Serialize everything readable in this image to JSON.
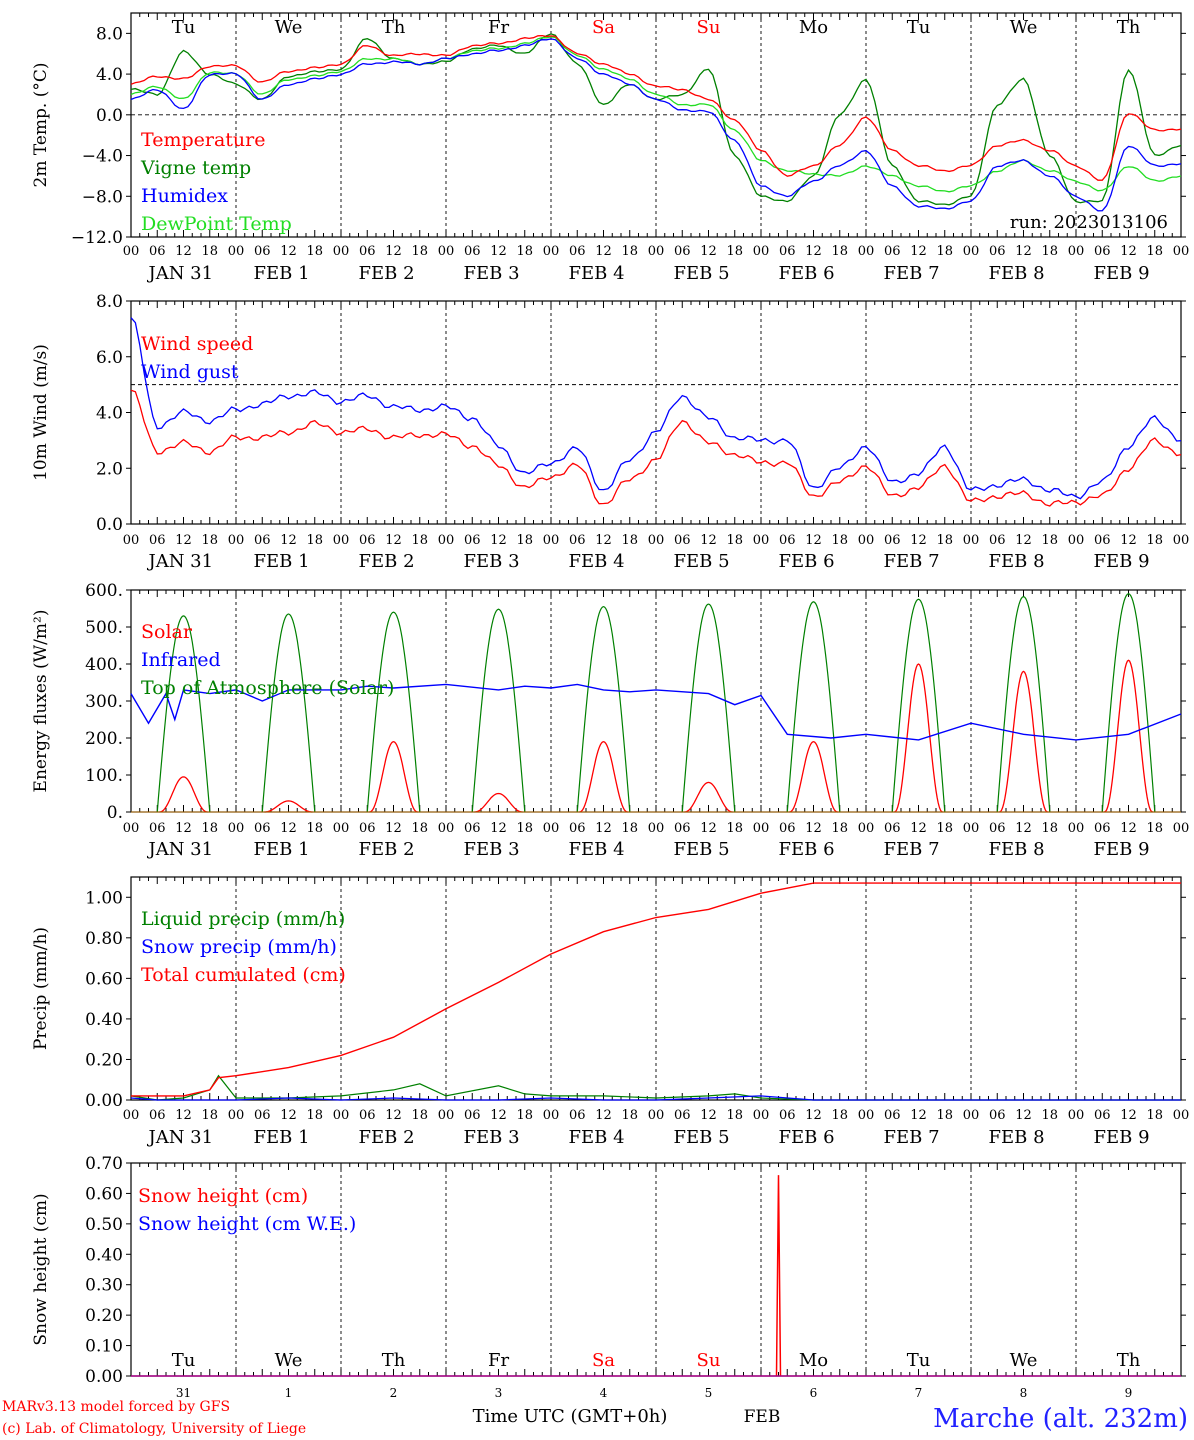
{
  "chart_data": [
    {
      "type": "line",
      "ylabel": "2m Temp. (°C)",
      "ylim": [
        -12,
        10
      ],
      "yticks": [
        8,
        4,
        0,
        -4,
        -8,
        -12
      ],
      "ytick_labels": [
        "8.0",
        "4.0",
        "0.0",
        "−4.0",
        "−8.0",
        "−12.0"
      ],
      "ref_line": 0,
      "day_labels": [
        "Tu",
        "We",
        "Th",
        "Fr",
        "Sa",
        "Su",
        "Mo",
        "Tu",
        "We",
        "Th"
      ],
      "run_label": "run: 2023013106",
      "x": [
        0,
        6,
        12,
        18,
        24,
        30,
        36,
        42,
        48,
        54,
        60,
        66,
        72,
        78,
        84,
        90,
        96,
        102,
        108,
        114,
        120,
        126,
        132,
        138,
        144,
        150,
        156,
        162,
        168,
        174,
        180,
        186,
        192,
        198,
        204,
        210,
        216,
        222,
        228,
        234,
        240
      ],
      "series": [
        {
          "name": "Temperature",
          "color": "#ff0000",
          "values": [
            3.0,
            3.8,
            3.5,
            4.8,
            4.8,
            3.2,
            4.3,
            4.6,
            5.0,
            6.8,
            5.8,
            6.0,
            5.8,
            6.8,
            7.0,
            7.5,
            7.8,
            6.0,
            5.0,
            4.0,
            2.8,
            2.5,
            1.5,
            -0.5,
            -3.5,
            -6.0,
            -5.0,
            -3.0,
            -0.2,
            -3.5,
            -5.0,
            -5.5,
            -5.0,
            -3.0,
            -2.5,
            -3.5,
            -5.0,
            -6.5,
            0.2,
            -1.5,
            -1.4
          ]
        },
        {
          "name": "Vigne temp",
          "color": "#008000",
          "values": [
            2.5,
            2.0,
            6.2,
            4.0,
            3.0,
            1.5,
            3.8,
            4.2,
            4.5,
            7.5,
            5.5,
            5.0,
            5.2,
            6.5,
            6.8,
            6.0,
            8.0,
            5.0,
            1.0,
            3.0,
            1.5,
            2.0,
            4.5,
            -4.0,
            -8.0,
            -8.5,
            -6.0,
            0.0,
            3.5,
            -5.0,
            -8.5,
            -8.8,
            -8.0,
            1.0,
            3.5,
            -4.0,
            -8.5,
            -8.5,
            4.5,
            -4.0,
            -3.0
          ]
        },
        {
          "name": "Humidex",
          "color": "#0000ff",
          "values": [
            1.5,
            2.5,
            0.5,
            4.0,
            4.0,
            1.5,
            3.0,
            3.5,
            4.0,
            5.0,
            5.2,
            5.0,
            5.5,
            6.0,
            6.3,
            6.8,
            7.5,
            5.5,
            4.0,
            3.0,
            1.5,
            0.5,
            0.3,
            -2.5,
            -7.0,
            -8.0,
            -6.5,
            -5.0,
            -3.5,
            -7.0,
            -9.0,
            -9.2,
            -8.5,
            -5.0,
            -4.5,
            -6.0,
            -8.0,
            -9.5,
            -3.0,
            -5.0,
            -4.8
          ]
        },
        {
          "name": "DewPoint Temp",
          "color": "#22dd22",
          "values": [
            2.0,
            2.8,
            1.5,
            4.2,
            4.0,
            2.0,
            3.5,
            3.8,
            4.3,
            5.5,
            5.5,
            5.0,
            5.5,
            6.3,
            6.5,
            7.0,
            7.7,
            5.8,
            4.5,
            3.5,
            2.0,
            1.0,
            1.0,
            -1.5,
            -4.5,
            -5.5,
            -5.8,
            -6.0,
            -5.0,
            -6.0,
            -7.0,
            -7.5,
            -7.0,
            -5.5,
            -4.5,
            -5.5,
            -6.5,
            -7.5,
            -5.0,
            -6.5,
            -6.0
          ]
        }
      ]
    },
    {
      "type": "line",
      "ylabel": "10m Wind (m/s)",
      "ylim": [
        0,
        8
      ],
      "yticks": [
        0,
        2,
        4,
        6,
        8
      ],
      "ytick_labels": [
        "0.0",
        "2.0",
        "4.0",
        "6.0",
        "8.0"
      ],
      "ref_line": 5,
      "x": [
        0,
        6,
        12,
        18,
        24,
        30,
        36,
        42,
        48,
        54,
        60,
        66,
        72,
        78,
        84,
        90,
        96,
        102,
        108,
        114,
        120,
        126,
        132,
        138,
        144,
        150,
        156,
        162,
        168,
        174,
        180,
        186,
        192,
        198,
        204,
        210,
        216,
        222,
        228,
        234,
        240
      ],
      "series": [
        {
          "name": "Wind speed",
          "color": "#ff0000",
          "values": [
            4.8,
            2.6,
            2.9,
            2.6,
            3.1,
            3.1,
            3.3,
            3.6,
            3.3,
            3.4,
            3.1,
            3.2,
            3.2,
            2.8,
            2.1,
            1.3,
            1.7,
            2.1,
            0.7,
            1.6,
            2.3,
            3.7,
            2.9,
            2.5,
            2.2,
            2.2,
            1.0,
            1.5,
            2.1,
            1.0,
            1.3,
            2.1,
            0.8,
            1.0,
            1.1,
            0.7,
            0.8,
            1.0,
            2.0,
            3.0,
            2.5
          ]
        },
        {
          "name": "Wind gust",
          "color": "#0000ff",
          "values": [
            7.4,
            3.5,
            4.0,
            3.7,
            4.1,
            4.3,
            4.6,
            4.7,
            4.4,
            4.6,
            4.2,
            4.1,
            4.2,
            3.8,
            2.8,
            1.8,
            2.2,
            2.7,
            1.2,
            2.3,
            3.3,
            4.6,
            3.8,
            3.1,
            3.0,
            3.0,
            1.3,
            2.0,
            2.8,
            1.5,
            1.8,
            2.8,
            1.2,
            1.4,
            1.6,
            1.2,
            1.0,
            1.5,
            2.8,
            3.8,
            3.0
          ]
        }
      ]
    },
    {
      "type": "line",
      "ylabel": "Energy fluxes (W/m²)",
      "ylim": [
        0,
        600
      ],
      "yticks": [
        0,
        100,
        200,
        300,
        400,
        500,
        600
      ],
      "ytick_labels": [
        "0.",
        "100.",
        "200.",
        "300.",
        "400.",
        "500.",
        "600."
      ],
      "toa_peaks": [
        530,
        535,
        540,
        548,
        555,
        562,
        568,
        575,
        582,
        590
      ],
      "solar_peaks": [
        95,
        30,
        190,
        50,
        190,
        80,
        190,
        400,
        380,
        410
      ],
      "infrared": {
        "x": [
          0,
          4,
          8,
          10,
          12,
          18,
          24,
          30,
          36,
          48,
          54,
          60,
          72,
          84,
          90,
          96,
          102,
          108,
          114,
          120,
          132,
          138,
          144,
          150,
          160,
          168,
          180,
          192,
          204,
          216,
          228,
          240
        ],
        "values": [
          320,
          240,
          320,
          250,
          330,
          320,
          330,
          300,
          330,
          330,
          340,
          335,
          345,
          330,
          340,
          335,
          345,
          330,
          325,
          330,
          320,
          290,
          315,
          210,
          200,
          210,
          195,
          240,
          210,
          195,
          210,
          265
        ]
      },
      "series": [
        {
          "name": "Solar",
          "color": "#ff0000"
        },
        {
          "name": "Infrared",
          "color": "#0000ff"
        },
        {
          "name": "Top of Atmosphere (Solar)",
          "color": "#008000"
        }
      ]
    },
    {
      "type": "line",
      "ylabel": "Precip (mm/h)",
      "ylim": [
        0,
        1.1
      ],
      "yticks": [
        0,
        0.2,
        0.4,
        0.6,
        0.8,
        1.0
      ],
      "ytick_labels": [
        "0.00",
        "0.20",
        "0.40",
        "0.60",
        "0.80",
        "1.00"
      ],
      "total": {
        "x": [
          0,
          12,
          18,
          20,
          24,
          36,
          48,
          60,
          72,
          84,
          96,
          108,
          120,
          132,
          144,
          156,
          168,
          180,
          192,
          204,
          216,
          228,
          240
        ],
        "values": [
          0.02,
          0.02,
          0.05,
          0.11,
          0.12,
          0.16,
          0.22,
          0.31,
          0.45,
          0.58,
          0.72,
          0.83,
          0.9,
          0.94,
          1.02,
          1.07,
          1.07,
          1.07,
          1.07,
          1.07,
          1.07,
          1.07,
          1.07
        ]
      },
      "liquid": {
        "x": [
          0,
          6,
          12,
          18,
          20,
          24,
          36,
          48,
          60,
          66,
          72,
          84,
          90,
          96,
          108,
          120,
          132,
          138,
          144,
          156,
          168,
          180,
          192,
          204,
          216,
          228,
          240
        ],
        "values": [
          0.02,
          0.0,
          0.01,
          0.05,
          0.12,
          0.01,
          0.01,
          0.02,
          0.05,
          0.08,
          0.02,
          0.07,
          0.03,
          0.02,
          0.02,
          0.01,
          0.02,
          0.03,
          0.01,
          0.0,
          0.0,
          0.0,
          0.0,
          0.0,
          0.0,
          0.0,
          0.0
        ]
      },
      "snow": {
        "x": [
          0,
          6,
          12,
          18,
          24,
          36,
          48,
          60,
          72,
          84,
          96,
          108,
          120,
          132,
          144,
          156,
          168,
          180,
          192,
          204,
          216,
          228,
          240
        ],
        "values": [
          0.01,
          0.0,
          0.0,
          0.0,
          0.0,
          0.01,
          0.0,
          0.01,
          0.0,
          0.0,
          0.01,
          0.0,
          0.0,
          0.01,
          0.02,
          0.0,
          0.0,
          0.0,
          0.0,
          0.0,
          0.0,
          0.0,
          0.0
        ]
      },
      "series": [
        {
          "name": "Liquid precip (mm/h)",
          "color": "#008000"
        },
        {
          "name": "Snow precip (mm/h)",
          "color": "#0000ff"
        },
        {
          "name": "Total cumulated (cm)",
          "color": "#ff0000"
        }
      ]
    },
    {
      "type": "line",
      "ylabel": "Snow height (cm)",
      "ylim": [
        0,
        0.7
      ],
      "yticks": [
        0,
        0.1,
        0.2,
        0.3,
        0.4,
        0.5,
        0.6,
        0.7
      ],
      "ytick_labels": [
        "0.00",
        "0.10",
        "0.20",
        "0.30",
        "0.40",
        "0.50",
        "0.60",
        "0.70"
      ],
      "spike": {
        "x": 148,
        "value": 0.66
      },
      "day_labels": [
        "Tu",
        "We",
        "Th",
        "Fr",
        "Sa",
        "Su",
        "Mo",
        "Tu",
        "We",
        "Th"
      ],
      "day_numbers": [
        "31",
        "1",
        "2",
        "3",
        "4",
        "5",
        "6",
        "7",
        "8",
        "9"
      ],
      "series": [
        {
          "name": "Snow height (cm)",
          "color": "#ff0000"
        },
        {
          "name": "Snow height (cm W.E.)",
          "color": "#0000ff"
        }
      ]
    }
  ],
  "x_axis": {
    "hour_labels": [
      "00",
      "06",
      "12",
      "18"
    ],
    "date_labels": [
      "JAN 31",
      "FEB  1",
      "FEB  2",
      "FEB  3",
      "FEB  4",
      "FEB  5",
      "FEB  6",
      "FEB  7",
      "FEB  8",
      "FEB  9"
    ],
    "weekend_color": "#ff0000",
    "weekday_color": "#000000",
    "weekend_days": [
      "Sa",
      "Su"
    ]
  },
  "footer": {
    "model_line": "MARv3.13 model forced by GFS",
    "credit_line": "(c) Lab. of Climatology, University of Liege",
    "time_label": "Time UTC (GMT+0h)",
    "month_label": "FEB",
    "location": "Marche (alt. 232m)"
  }
}
